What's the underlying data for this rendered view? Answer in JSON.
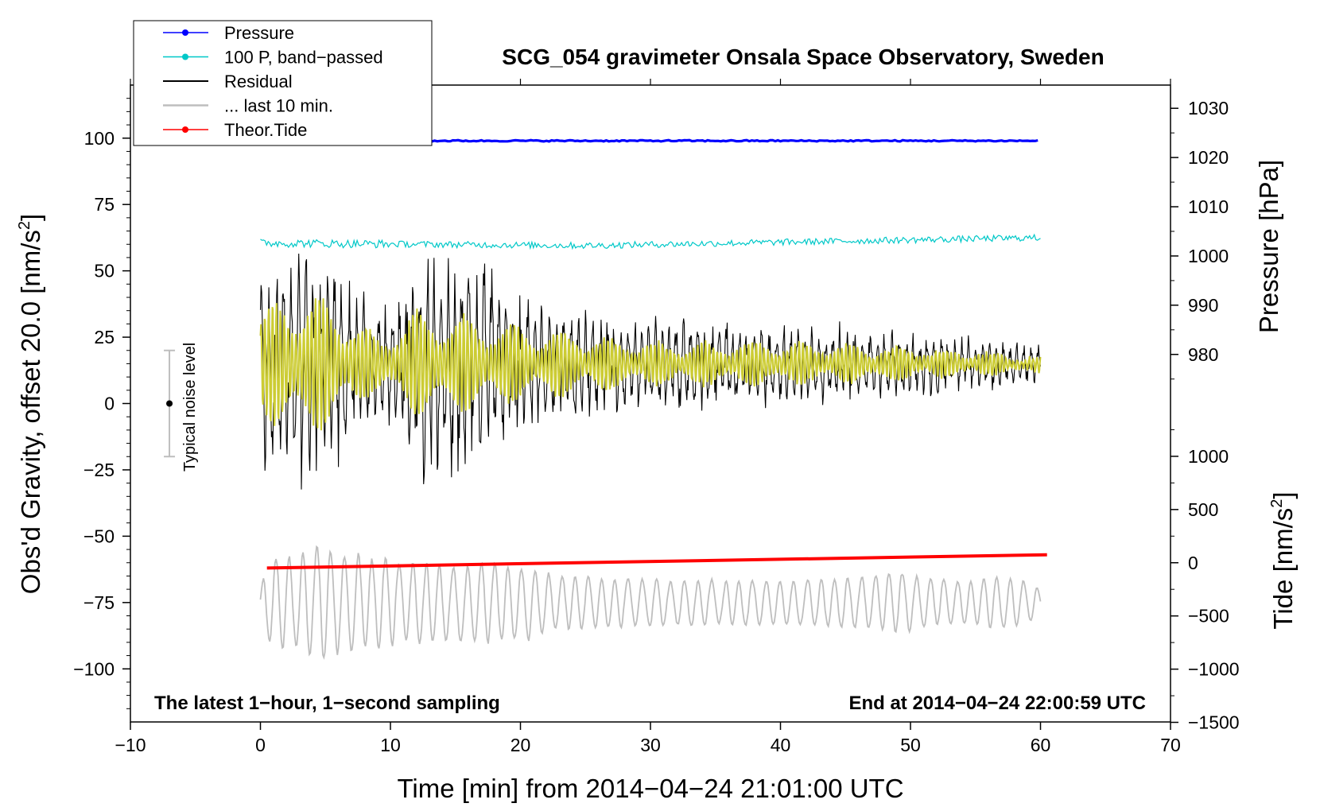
{
  "chart_data": {
    "type": "line",
    "title": "SCG_054 gravimeter Onsala Space Observatory, Sweden",
    "xlabel": "Time [min] from 2014−04−24 21:01:00 UTC",
    "ylabel_prefix": "Obs'd Gravity, offset 20.0 [nm/s",
    "ylabel_sup": "2",
    "ylabel_suffix": "]",
    "pressure_label": "Pressure [hPa]",
    "tide_label_prefix": "Tide [nm/s",
    "tide_label_sup": "2",
    "tide_label_suffix": "]",
    "xlim": [
      -10,
      70
    ],
    "ylim": [
      -120,
      120
    ],
    "xticks": [
      "−10",
      "0",
      "10",
      "20",
      "30",
      "40",
      "50",
      "60",
      "70"
    ],
    "xtick_values": [
      -10,
      0,
      10,
      20,
      30,
      40,
      50,
      60,
      70
    ],
    "yticks": [
      "100",
      "75",
      "50",
      "25",
      "0",
      "−25",
      "−50",
      "−75",
      "−100"
    ],
    "ytick_values": [
      100,
      75,
      50,
      25,
      0,
      -25,
      -50,
      -75,
      -100
    ],
    "pressure_ticks": [
      "1030",
      "1020",
      "1010",
      "1000",
      "990",
      "980"
    ],
    "pressure_tick_values": [
      1030,
      1020,
      1010,
      1000,
      990,
      980
    ],
    "pressure_axis": {
      "p_ref": 980,
      "g_ref": 18.5,
      "g_per_hPa": 1.855
    },
    "tide_ticks": [
      "1000",
      "500",
      "0",
      "−500",
      "−1000",
      "−1500"
    ],
    "tide_tick_values": [
      1000,
      500,
      0,
      -500,
      -1000,
      -1500
    ],
    "tide_axis": {
      "t_ref": 0,
      "g_ref": -60,
      "g_per_unit": 0.0401
    },
    "note_left": "The latest 1−hour, 1−second sampling",
    "note_right": "End at 2014−04−24 22:00:59 UTC",
    "noise_label": "Typical noise level",
    "noise_bar": {
      "x": -7,
      "center": 0,
      "low": -20,
      "high": 20
    },
    "legend": [
      {
        "label": "Pressure",
        "color": "#0000ff",
        "marker": true
      },
      {
        "label": "100 P, band−passed",
        "color": "#00c8c8",
        "marker": true
      },
      {
        "label": "Residual",
        "color": "#000000",
        "marker": false
      },
      {
        "label": "... last 10 min.",
        "color": "#bebebe",
        "marker": false
      },
      {
        "label": "Theor.Tide",
        "color": "#ff0000",
        "marker": true
      }
    ],
    "series": [
      {
        "name": "Pressure",
        "color": "#0000ff",
        "x_range": [
          0,
          60
        ],
        "level": 99,
        "noise": 0.25
      },
      {
        "name": "100 P, band−passed",
        "color": "#00c8c8",
        "x_range": [
          0,
          60
        ],
        "level_start": 60.5,
        "level_mid": 59.5,
        "level_end": 62.5,
        "noise": 1.2
      },
      {
        "name": "Residual",
        "color": "#000000",
        "x_range": [
          0,
          60
        ],
        "center": 15,
        "envelope": [
          [
            0,
            40
          ],
          [
            3,
            45
          ],
          [
            6,
            38
          ],
          [
            9,
            20
          ],
          [
            12,
            40
          ],
          [
            16,
            45
          ],
          [
            20,
            25
          ],
          [
            30,
            18
          ],
          [
            40,
            15
          ],
          [
            50,
            12
          ],
          [
            60,
            8
          ]
        ]
      },
      {
        "name": "Residual (filtered)",
        "color": "#cccc33",
        "x_range": [
          0,
          60
        ],
        "center": 15,
        "envelope": [
          [
            0,
            20
          ],
          [
            3,
            28
          ],
          [
            6,
            22
          ],
          [
            9,
            10
          ],
          [
            12,
            20
          ],
          [
            16,
            18
          ],
          [
            20,
            14
          ],
          [
            30,
            8
          ],
          [
            40,
            8
          ],
          [
            50,
            6
          ],
          [
            60,
            3
          ]
        ]
      },
      {
        "name": "... last 10 min.",
        "color": "#bebebe",
        "x_range": [
          0,
          60
        ],
        "center": -75,
        "envelope": [
          [
            0,
            18
          ],
          [
            5,
            20
          ],
          [
            10,
            15
          ],
          [
            20,
            15
          ],
          [
            22,
            10
          ],
          [
            40,
            8
          ],
          [
            46,
            10
          ],
          [
            49,
            12
          ],
          [
            52,
            8
          ],
          [
            57,
            10
          ],
          [
            60,
            5
          ]
        ]
      },
      {
        "name": "Theor.Tide",
        "color": "#ff0000",
        "x_range": [
          0.5,
          60.5
        ],
        "start": -62,
        "end": -57
      }
    ]
  }
}
